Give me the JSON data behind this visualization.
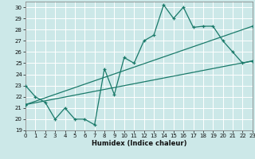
{
  "title": "",
  "xlabel": "Humidex (Indice chaleur)",
  "ylabel": "",
  "bg_color": "#cce8e8",
  "grid_color": "#ffffff",
  "line_color": "#1a7a6a",
  "ylim": [
    19,
    30.5
  ],
  "xlim": [
    0,
    23
  ],
  "yticks": [
    19,
    20,
    21,
    22,
    23,
    24,
    25,
    26,
    27,
    28,
    29,
    30
  ],
  "xticks": [
    0,
    1,
    2,
    3,
    4,
    5,
    6,
    7,
    8,
    9,
    10,
    11,
    12,
    13,
    14,
    15,
    16,
    17,
    18,
    19,
    20,
    21,
    22,
    23
  ],
  "series1_x": [
    0,
    1,
    2,
    3,
    4,
    5,
    6,
    7,
    8,
    9,
    10,
    11,
    12,
    13,
    14,
    15,
    16,
    17,
    18,
    19,
    20,
    21,
    22,
    23
  ],
  "series1_y": [
    23.0,
    22.0,
    21.5,
    20.0,
    21.0,
    20.0,
    20.0,
    19.5,
    24.5,
    22.2,
    25.5,
    25.0,
    27.0,
    27.5,
    30.2,
    29.0,
    30.0,
    28.2,
    28.3,
    28.3,
    27.0,
    26.0,
    25.0,
    25.2
  ],
  "series2_x": [
    0,
    23
  ],
  "series2_y": [
    21.3,
    25.2
  ],
  "series3_x": [
    0,
    23
  ],
  "series3_y": [
    21.3,
    28.3
  ],
  "xlabel_fontsize": 6.0,
  "tick_fontsize": 5.0
}
